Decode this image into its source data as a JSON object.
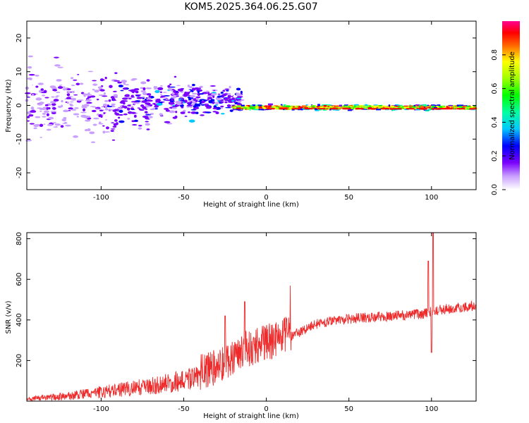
{
  "title": "KOM5.2025.364.06.25.G07",
  "chart_data": [
    {
      "type": "heatmap",
      "name": "spectrogram",
      "xlabel": "Height of straight line (km)",
      "ylabel": "Frequency (Hz)",
      "xlim": [
        -145,
        127
      ],
      "ylim": [
        -25,
        25
      ],
      "xticks": [
        -100,
        -50,
        0,
        50,
        100
      ],
      "yticks": [
        -20,
        -10,
        0,
        10,
        20
      ],
      "description_points": [
        {
          "x_range": [
            -145,
            -20
          ],
          "note": "scattered low-amplitude patches, mostly 0.05-0.25"
        },
        {
          "x_range": [
            -20,
            127
          ],
          "note": "narrow band near 0 to -1 Hz, amplitude up to 1.0"
        }
      ],
      "colorbar": {
        "label": "Normalized spectral amplitude",
        "ticks": [
          0.0,
          0.2,
          0.4,
          0.6,
          0.8
        ],
        "range": [
          0,
          1
        ]
      }
    },
    {
      "type": "line",
      "name": "snr",
      "xlabel": "Height of straight line (km)",
      "ylabel": "SNR (v/v)",
      "xlim": [
        -145,
        127
      ],
      "ylim": [
        0,
        830
      ],
      "xticks": [
        -100,
        -50,
        0,
        50,
        100
      ],
      "yticks": [
        200,
        400,
        600,
        800
      ],
      "color": "#ee2a2a",
      "trend": [
        {
          "x": -145,
          "y": 10
        },
        {
          "x": -120,
          "y": 25
        },
        {
          "x": -100,
          "y": 45
        },
        {
          "x": -75,
          "y": 70
        },
        {
          "x": -50,
          "y": 100
        },
        {
          "x": -30,
          "y": 150
        },
        {
          "x": -15,
          "y": 230
        },
        {
          "x": 0,
          "y": 270
        },
        {
          "x": 10,
          "y": 300
        },
        {
          "x": 20,
          "y": 340
        },
        {
          "x": 30,
          "y": 380
        },
        {
          "x": 50,
          "y": 405
        },
        {
          "x": 75,
          "y": 420
        },
        {
          "x": 95,
          "y": 430
        },
        {
          "x": 105,
          "y": 450
        },
        {
          "x": 127,
          "y": 470
        }
      ],
      "spikes": [
        {
          "x": -25,
          "y": 420
        },
        {
          "x": -13,
          "y": 490
        },
        {
          "x": 98,
          "y": 690
        },
        {
          "x": 101,
          "y": 830
        },
        {
          "x": 100,
          "y": 240
        }
      ]
    }
  ]
}
